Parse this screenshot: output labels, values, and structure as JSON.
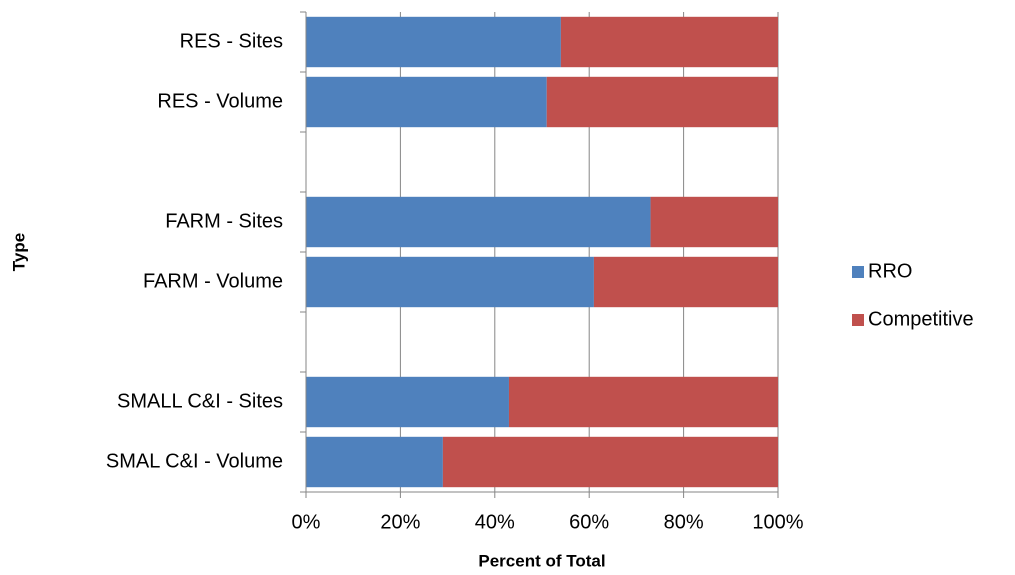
{
  "chart_data": {
    "type": "stacked-bar-horizontal",
    "categories": [
      "RES - Sites",
      "RES - Volume",
      null,
      "FARM - Sites",
      "FARM - Volume",
      null,
      "SMALL C&I - Sites",
      "SMAL C&I - Volume"
    ],
    "series": [
      {
        "name": "RRO",
        "color": "#4f81bd",
        "values": [
          54,
          51,
          null,
          73,
          61,
          null,
          43,
          29
        ]
      },
      {
        "name": "Competitive",
        "color": "#c0504d",
        "values": [
          46,
          49,
          null,
          27,
          39,
          null,
          57,
          71
        ]
      }
    ],
    "xlim": [
      0,
      100
    ],
    "xticks": [
      {
        "value": 0,
        "label": "0%"
      },
      {
        "value": 20,
        "label": "20%"
      },
      {
        "value": 40,
        "label": "40%"
      },
      {
        "value": 60,
        "label": "60%"
      },
      {
        "value": 80,
        "label": "80%"
      },
      {
        "value": 100,
        "label": "100%"
      }
    ],
    "x_label": "Percent of Total",
    "y_label": "Type",
    "grid": true,
    "legend": "right"
  }
}
